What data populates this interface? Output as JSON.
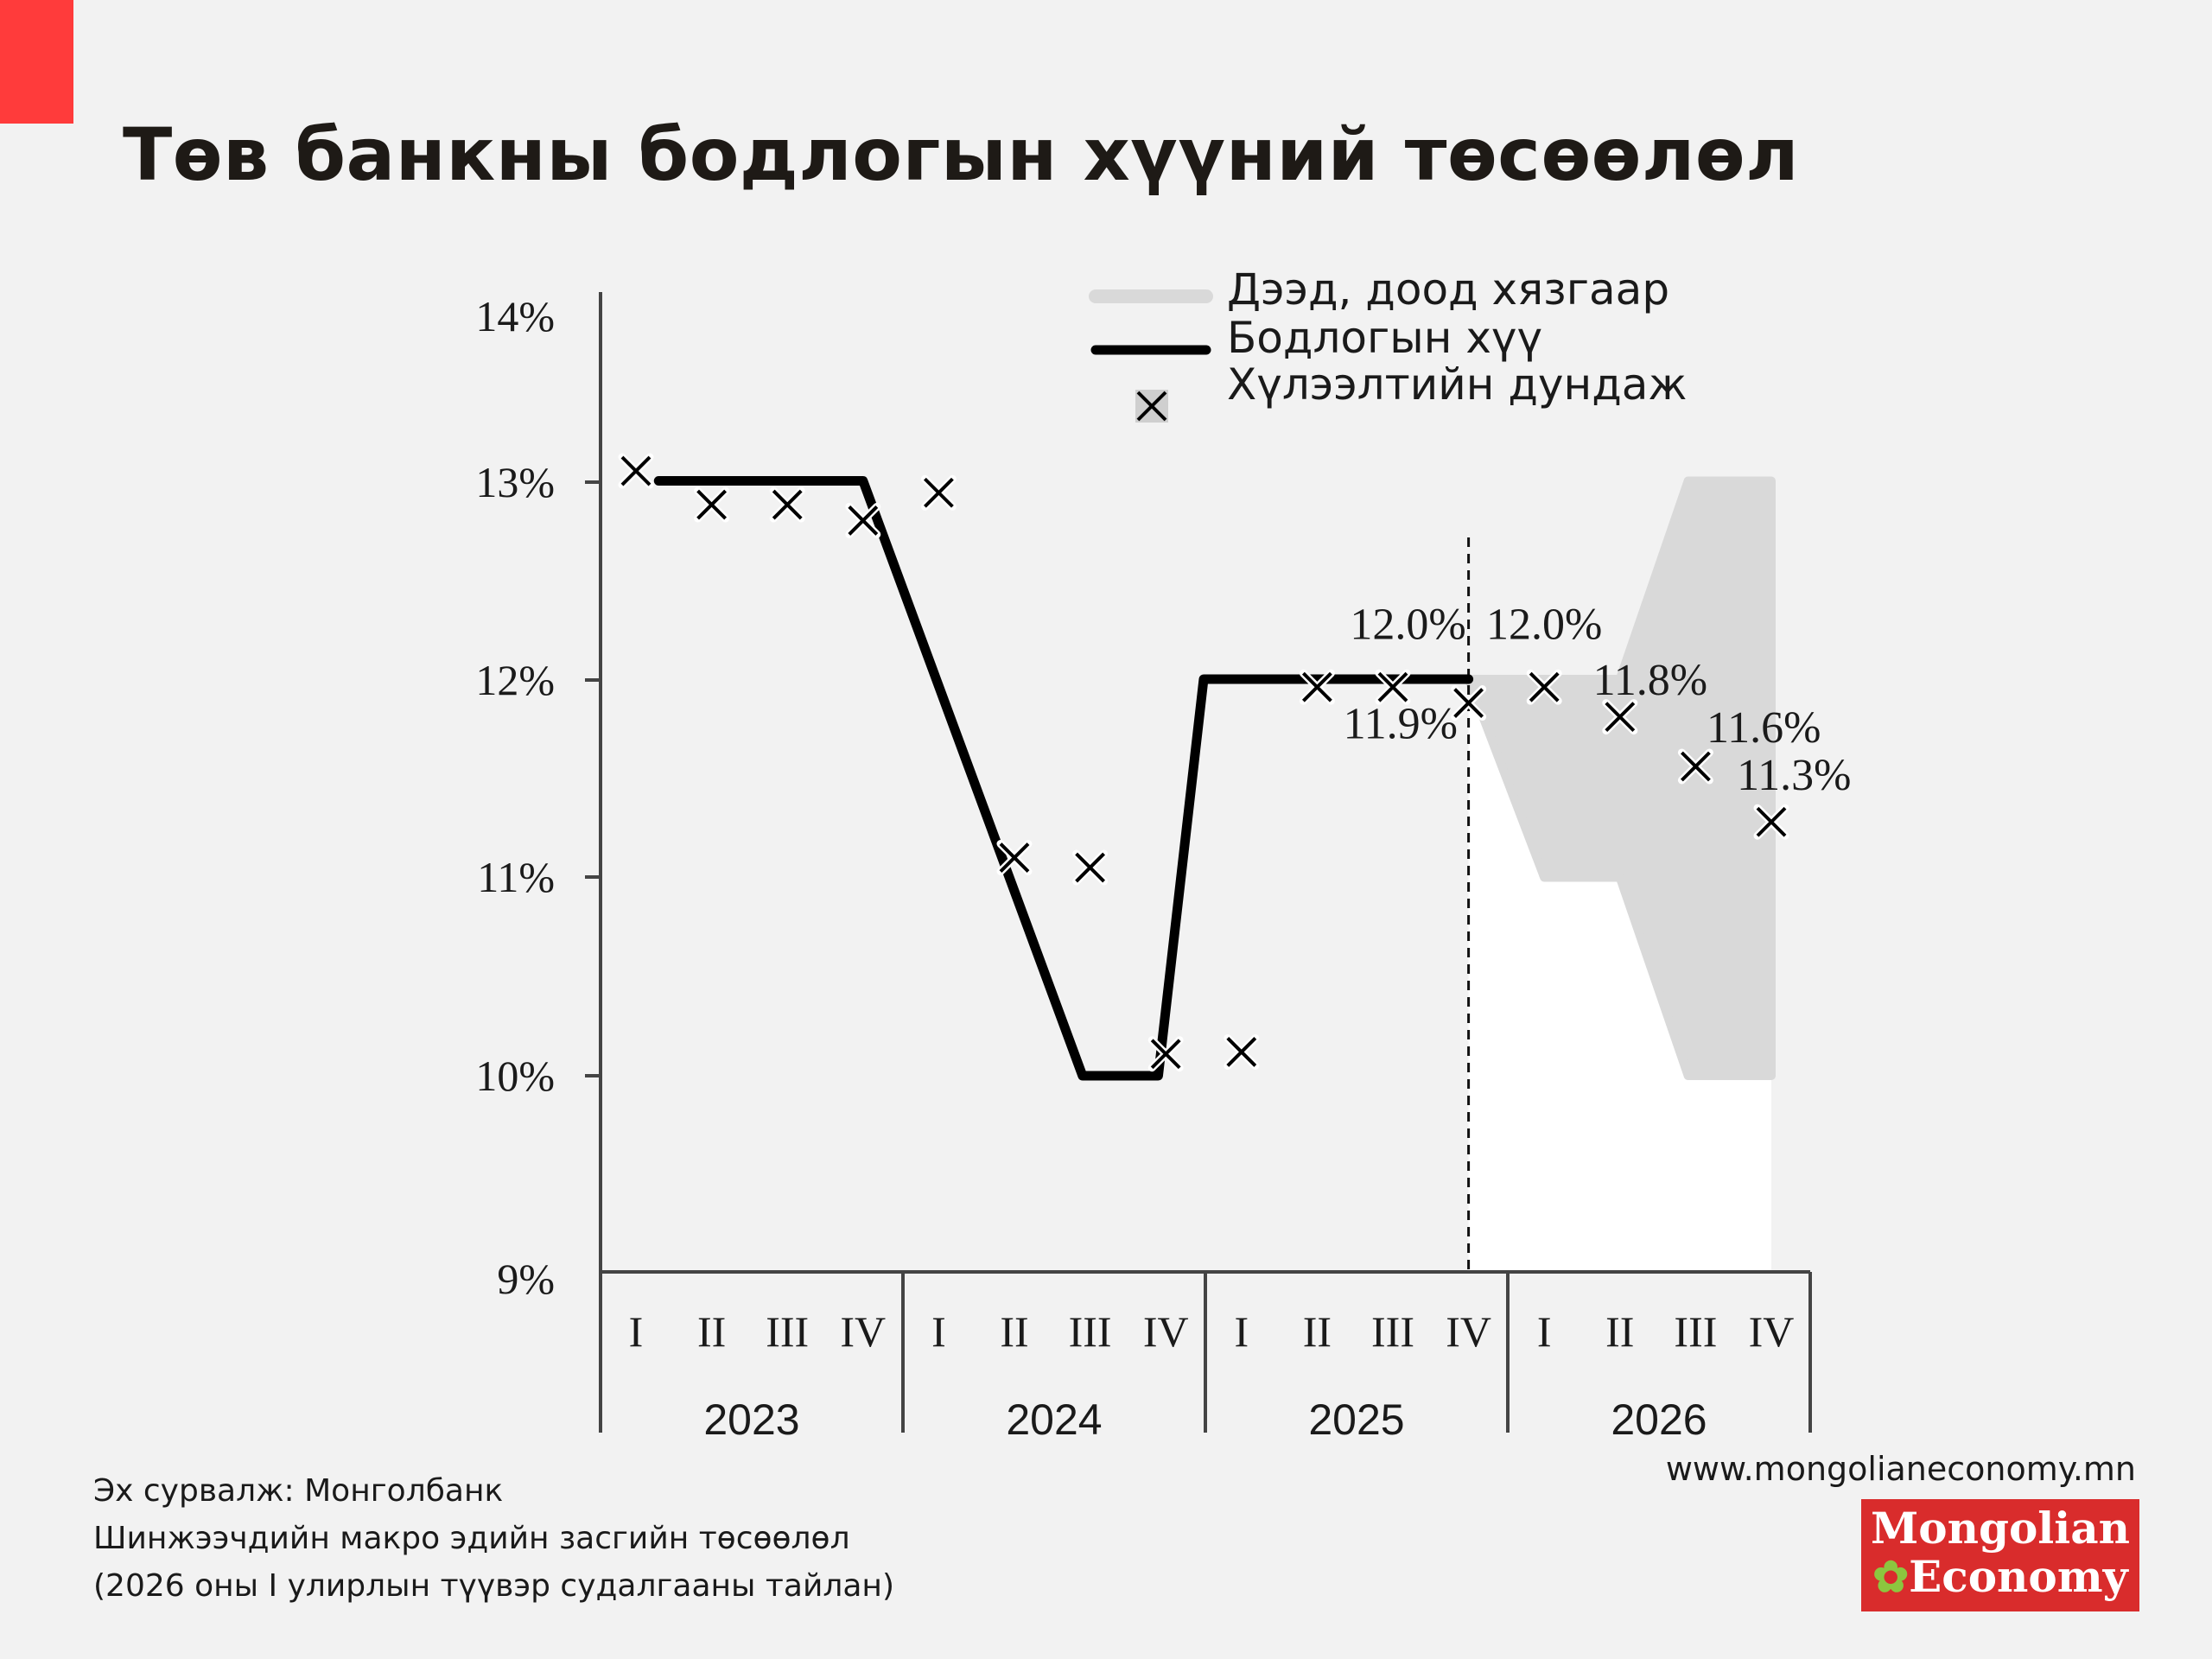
{
  "title": "Төв банкны бодлогын хүүний төсөөлөл",
  "chart_data": {
    "type": "line",
    "x_quarters": [
      "I",
      "II",
      "III",
      "IV",
      "I",
      "II",
      "III",
      "IV",
      "I",
      "II",
      "III",
      "IV",
      "I",
      "II",
      "III",
      "IV"
    ],
    "years": [
      "2023",
      "2024",
      "2025",
      "2026"
    ],
    "y_ticks": [
      "9%",
      "10%",
      "11%",
      "12%",
      "13%",
      "14%"
    ],
    "ylim": [
      9,
      14
    ],
    "legend": {
      "band": "Дээд, доод хязгаар",
      "policy": "Бодлогын хүү",
      "expect": "Хүлээлтийн дундаж"
    },
    "policy_rate": [
      {
        "x": 0.3,
        "y": 13.0
      },
      {
        "x": 3.0,
        "y": 13.0
      },
      {
        "x": 5.9,
        "y": 10.0
      },
      {
        "x": 6.9,
        "y": 10.0
      },
      {
        "x": 7.5,
        "y": 12.0
      },
      {
        "x": 11.0,
        "y": 12.0
      }
    ],
    "expectations": [
      13.05,
      12.88,
      12.88,
      12.8,
      12.94,
      11.1,
      11.05,
      10.11,
      10.12,
      11.96,
      11.96,
      11.88,
      11.96,
      11.81,
      11.56,
      11.28
    ],
    "forecast_band": {
      "upper": [
        {
          "x": 11.0,
          "y": 12.0
        },
        {
          "x": 12.0,
          "y": 12.0
        },
        {
          "x": 13.0,
          "y": 12.0
        },
        {
          "x": 13.9,
          "y": 13.0
        },
        {
          "x": 15.0,
          "y": 13.0
        }
      ],
      "lower": [
        {
          "x": 11.0,
          "y": 12.0
        },
        {
          "x": 12.0,
          "y": 11.0
        },
        {
          "x": 13.0,
          "y": 11.0
        },
        {
          "x": 13.9,
          "y": 10.0
        },
        {
          "x": 15.0,
          "y": 10.0
        }
      ]
    },
    "forecast_divider_x": 11.0,
    "data_labels": [
      {
        "text": "12.0%",
        "x": 10.2,
        "y": 12.28
      },
      {
        "text": "12.0%",
        "x": 12.0,
        "y": 12.28
      },
      {
        "text": "11.9%",
        "x": 10.1,
        "y": 11.78
      },
      {
        "text": "11.8%",
        "x": 13.4,
        "y": 12.0
      },
      {
        "text": "11.6%",
        "x": 14.9,
        "y": 11.76
      },
      {
        "text": "11.3%",
        "x": 15.3,
        "y": 11.52
      }
    ],
    "colors": {
      "band": "#d9d9d9",
      "policy": "#000000",
      "expect": "#000000",
      "below_band": "#ffffff"
    }
  },
  "source": {
    "line1": "Эх сурвалж: Монголбанк",
    "line2": "Шинжээчдийн макро эдийн засгийн төсөөлөл",
    "line3": "(2026 оны I улирлын түүвэр судалгааны тайлан)"
  },
  "website": "www.mongolianeconomy.mn",
  "logo": {
    "line1": "Mongolian",
    "line2": "Economy",
    "leaf_icon": "leaf-icon"
  }
}
